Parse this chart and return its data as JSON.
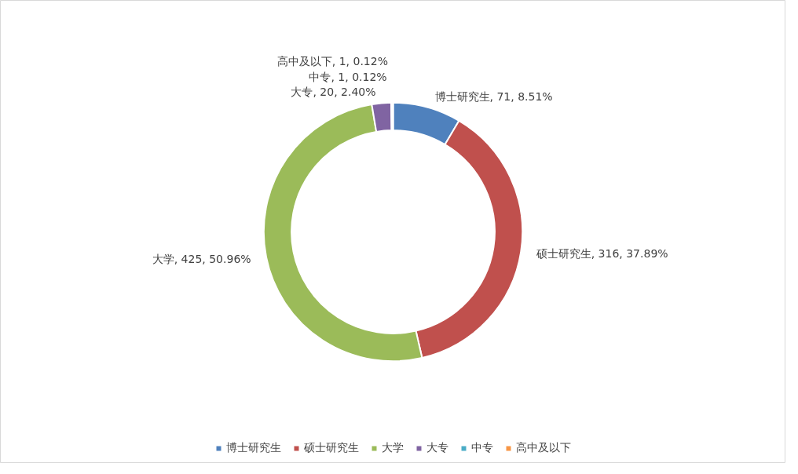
{
  "chart_data": {
    "type": "donut",
    "categories": [
      "博士研究生",
      "硕士研究生",
      "大学",
      "大专",
      "中专",
      "高中及以下"
    ],
    "values": [
      71,
      316,
      425,
      20,
      1,
      1
    ],
    "colors": [
      "#4f81bd",
      "#c0504d",
      "#9bbb59",
      "#8064a2",
      "#4bacc6",
      "#f79646"
    ],
    "value_labels": [
      "博士研究生, 71, 8.51%",
      "硕士研究生, 316, 37.89%",
      "大学, 425, 50.96%",
      "大专, 20, 2.40%",
      "中专, 1, 0.12%",
      "高中及以下, 1, 0.12%"
    ],
    "legend": "bottom"
  }
}
